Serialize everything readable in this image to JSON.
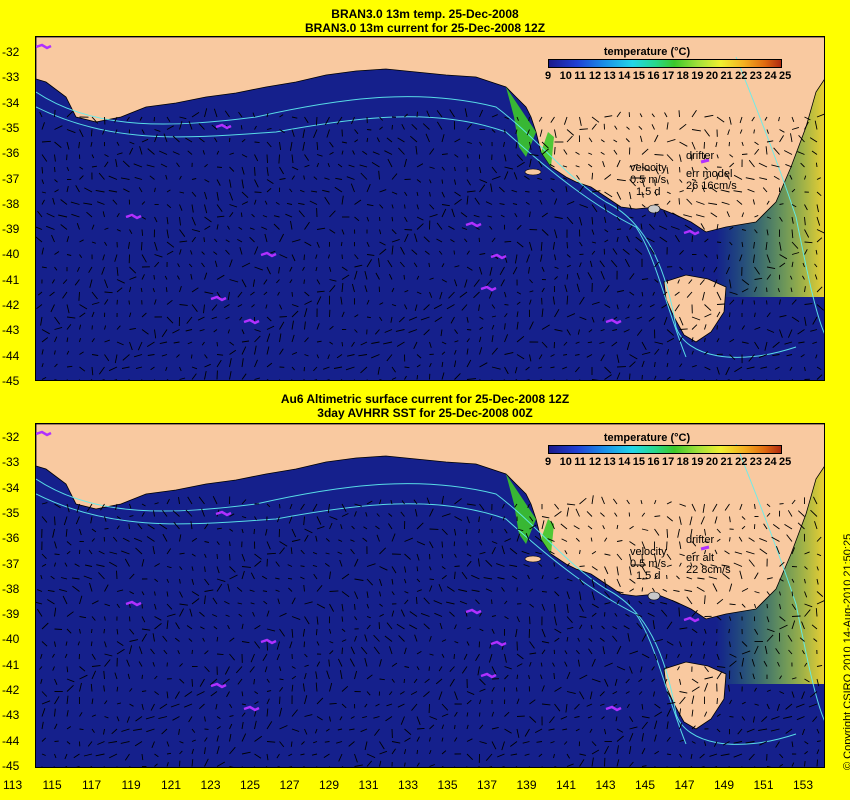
{
  "panel1": {
    "title1": "BRAN3.0 13m temp. 25-Dec-2008",
    "title2": "BRAN3.0 13m current for 25-Dec-2008 12Z",
    "velocity_label": "velocity",
    "velocity_scale": "0.5 m/s",
    "velocity_time": "1.5 d",
    "drifter_label": "drifter",
    "err_label": "err model",
    "err_values": "26 16cm/s"
  },
  "panel2": {
    "title1": "Au6 Altimetric surface current for 25-Dec-2008 12Z",
    "title2": "3day AVHRR SST for 25-Dec-2008 00Z",
    "velocity_label": "velocity",
    "velocity_scale": "0.5 m/s",
    "velocity_time": "1.5 d",
    "drifter_label": "drifter",
    "err_label": "err alt",
    "err_values": "22 8cm/s"
  },
  "legend": {
    "title": "temperature (°C)",
    "ticks": [
      "9",
      "10",
      "11",
      "12",
      "13",
      "14",
      "15",
      "16",
      "17",
      "18",
      "19",
      "20",
      "21",
      "22",
      "23",
      "24",
      "25"
    ]
  },
  "axes": {
    "lat_labels": [
      "-32",
      "-33",
      "-34",
      "-35",
      "-36",
      "-37",
      "-38",
      "-39",
      "-40",
      "-41",
      "-42",
      "-43",
      "-44",
      "-45"
    ],
    "lon_labels": [
      "113",
      "115",
      "117",
      "119",
      "121",
      "123",
      "125",
      "127",
      "129",
      "131",
      "133",
      "135",
      "137",
      "139",
      "141",
      "143",
      "145",
      "147",
      "149",
      "151",
      "153"
    ]
  },
  "copyright": "© Copyright CSIRO 2010    14-Aug-2010 21:50:25",
  "colors": {
    "land": "#f9c9a0",
    "contour": "#5ff0f0",
    "drifter": "#b030ff",
    "frame": "#ffff00"
  }
}
